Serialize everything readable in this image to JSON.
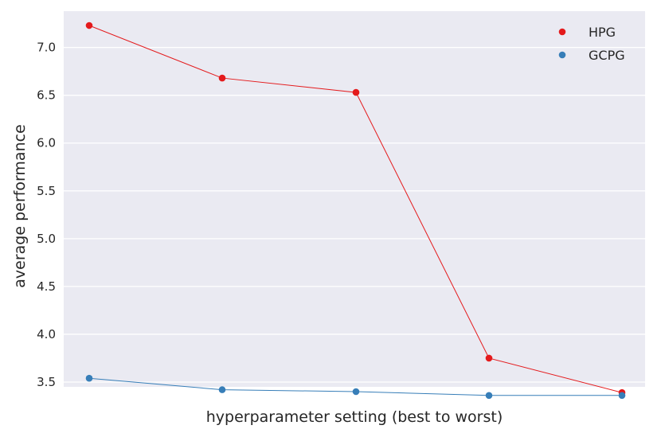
{
  "chart_data": {
    "type": "line",
    "title": "",
    "xlabel": "hyperparameter setting (best to worst)",
    "ylabel": "average performance",
    "x": [
      1,
      2,
      3,
      4,
      5
    ],
    "ylim": [
      3.45,
      7.38
    ],
    "yticks": [
      "3.5",
      "4.0",
      "4.5",
      "5.0",
      "5.5",
      "6.0",
      "6.5",
      "7.0"
    ],
    "xticks_shown": false,
    "grid": true,
    "legend_position": "top-right",
    "series": [
      {
        "name": "HPG",
        "color": "#e41a1c",
        "values": [
          7.23,
          6.68,
          6.53,
          3.75,
          3.39
        ]
      },
      {
        "name": "GCPG",
        "color": "#377eb8",
        "values": [
          3.54,
          3.42,
          3.4,
          3.36,
          3.36
        ]
      }
    ]
  }
}
